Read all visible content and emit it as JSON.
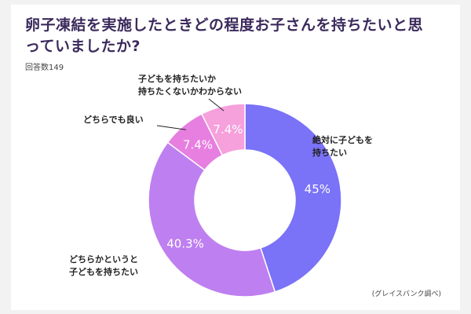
{
  "chart_data": {
    "type": "pie",
    "title": "卵子凍結を実施したときどの程度お子さんを持ちたいと思っていましたか?",
    "subtitle": "回答数149",
    "source": "(グレイスバンク調べ)",
    "categories": [
      "絶対に子どもを\n持ちたい",
      "どちらかというと\n子どもを持ちたい",
      "どちらでも良い",
      "子どもを持ちたいか\n持ちたくないかわからない"
    ],
    "values": [
      45,
      40.3,
      7.4,
      7.4
    ],
    "value_labels": [
      "45%",
      "40.3%",
      "7.4%",
      "7.4%"
    ],
    "colors": [
      "#7a72f7",
      "#be7ff0",
      "#e77fe0",
      "#f6a0dc"
    ],
    "donut": true
  }
}
